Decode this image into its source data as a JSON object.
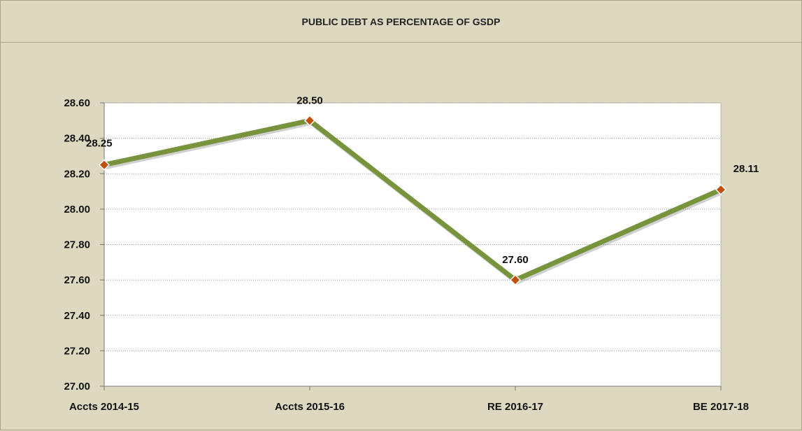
{
  "chart_data": {
    "type": "line",
    "title": "PUBLIC DEBT AS PERCENTAGE OF GSDP",
    "categories": [
      "Accts 2014-15",
      "Accts 2015-16",
      "RE 2016-17",
      "BE 2017-18"
    ],
    "series": [
      {
        "values": [
          28.25,
          28.5,
          27.6,
          28.11
        ]
      }
    ],
    "data_labels": [
      "28.25",
      "28.50",
      "27.60",
      "28.11"
    ],
    "y_ticks": [
      "27.00",
      "27.20",
      "27.40",
      "27.60",
      "27.80",
      "28.00",
      "28.20",
      "28.40",
      "28.60"
    ],
    "ylim": [
      27.0,
      28.6
    ],
    "grid": true,
    "legend": "none",
    "colors": {
      "line": "#77933c",
      "marker": "#c0500a",
      "plot_background": "#ffffff",
      "chart_background": "#ddd8c0"
    }
  }
}
